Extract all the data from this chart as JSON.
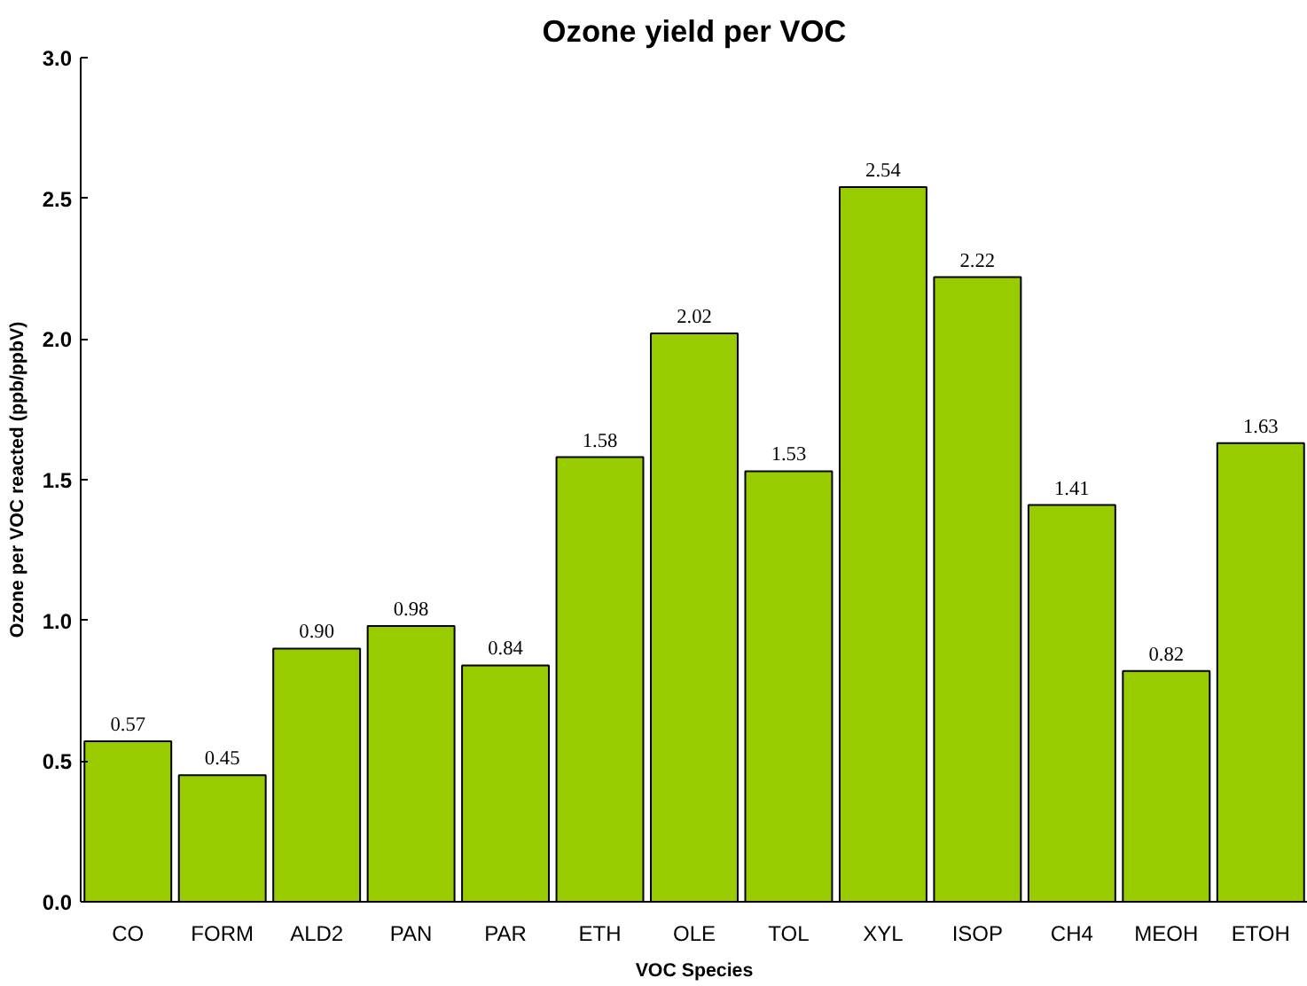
{
  "chart_data": {
    "type": "bar",
    "title": "Ozone yield per VOC",
    "xlabel": "VOC Species",
    "ylabel": "Ozone per VOC reacted (ppb/ppbV)",
    "categories": [
      "CO",
      "FORM",
      "ALD2",
      "PAN",
      "PAR",
      "ETH",
      "OLE",
      "TOL",
      "XYL",
      "ISOP",
      "CH4",
      "MEOH",
      "ETOH"
    ],
    "values": [
      0.57,
      0.45,
      0.9,
      0.98,
      0.84,
      1.58,
      2.02,
      1.53,
      2.54,
      2.22,
      1.41,
      0.82,
      1.63
    ],
    "value_labels": [
      "0.57",
      "0.45",
      "0.90",
      "0.98",
      "0.84",
      "1.58",
      "2.02",
      "1.53",
      "2.54",
      "2.22",
      "1.41",
      "0.82",
      "1.63"
    ],
    "color": "#99cc00",
    "ylim": [
      0,
      3
    ],
    "yticks": [
      {
        "value": 0,
        "label": "0.0"
      },
      {
        "value": 0.5,
        "label": "0.5"
      },
      {
        "value": 1,
        "label": "1.0"
      },
      {
        "value": 1.5,
        "label": "1.5"
      },
      {
        "value": 2,
        "label": "2.0"
      },
      {
        "value": 2.5,
        "label": "2.5"
      },
      {
        "value": 3,
        "label": "3.0"
      }
    ],
    "grid": false
  }
}
